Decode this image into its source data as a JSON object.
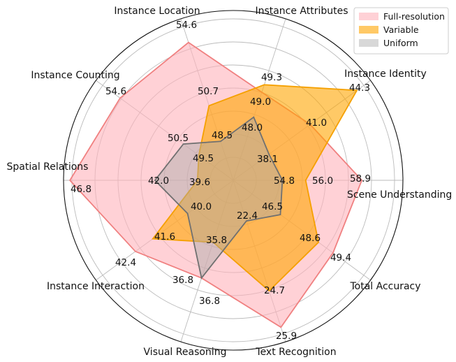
{
  "chart_data": {
    "type": "radar",
    "categories": [
      "Instance Attributes",
      "Instance Identity",
      "Scene Understanding",
      "Total Accuracy",
      "Text Recognition",
      "Visual Reasoning",
      "Instance Interaction",
      "Spatial Relations",
      "Instance Counting",
      "Instance Location"
    ],
    "axis_ranges": [
      [
        45.47,
        51.97
      ],
      [
        35.58,
        45.3
      ],
      [
        52.26,
        61.06
      ],
      [
        43.9,
        51.5
      ],
      [
        21.06,
        26.4
      ],
      [
        34.07,
        38.6
      ],
      [
        37.9,
        44.24
      ],
      [
        37.58,
        47.2
      ],
      [
        47.27,
        56.2
      ],
      [
        46.1,
        56.1
      ]
    ],
    "series": [
      {
        "name": "Full-resolution",
        "values": [
          49.0,
          41.0,
          58.9,
          49.4,
          25.9,
          36.8,
          42.4,
          46.8,
          54.6,
          54.6
        ],
        "fill": "#ffb3ba",
        "edge": "#f08080"
      },
      {
        "name": "Variable",
        "values": [
          49.3,
          44.3,
          56.0,
          48.6,
          24.7,
          35.8,
          41.6,
          39.6,
          49.5,
          50.7
        ],
        "fill": "#ffa500",
        "edge": "#f5a000"
      },
      {
        "name": "Uniform",
        "values": [
          48.0,
          38.1,
          54.8,
          46.5,
          22.4,
          36.8,
          40.0,
          42.0,
          50.5,
          48.5
        ],
        "fill": "#a8a8a8",
        "edge": "#707070"
      }
    ],
    "grid": true,
    "legend": "top-right"
  }
}
